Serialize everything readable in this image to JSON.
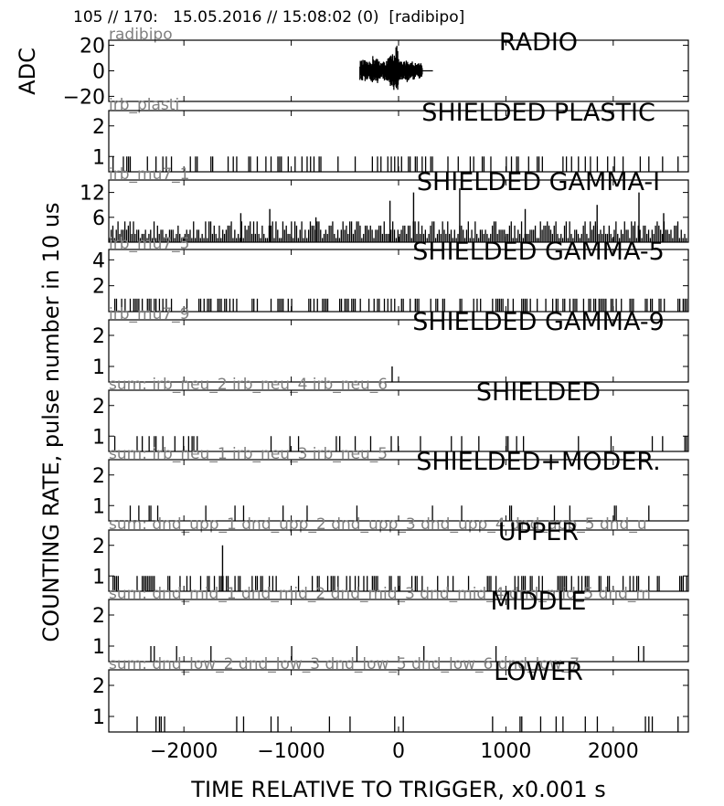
{
  "header": "105 // 170:   15.05.2016 // 15:08:02 (0)  [radibipo]",
  "chart_data": {
    "type": "line",
    "xlabel": "TIME RELATIVE TO TRIGGER,   x0.001 s",
    "xlim": [
      -2700,
      2700
    ],
    "xticks": [
      -2000,
      -1000,
      0,
      1000,
      2000
    ],
    "xtick_labels": [
      "−2000",
      "−1000",
      "0",
      "1000",
      "2000"
    ],
    "ylabel_adc": "ADC",
    "ylabel_rate": "COUNTING RATE,   pulse number in 10 us",
    "grid": false,
    "panels": [
      {
        "title": "RADIO",
        "source": "radibipo",
        "kind": "waveform",
        "ylim": [
          -24,
          24
        ],
        "yticks": [
          20,
          0,
          -20
        ],
        "ytick_labels": [
          "20",
          "0",
          "−20"
        ],
        "envelope": {
          "x": [
            -360,
            -320,
            -280,
            -240,
            -200,
            -160,
            -120,
            -90,
            -60,
            -40,
            -20,
            0,
            20,
            40,
            60,
            80,
            100,
            130,
            160,
            200,
            220
          ],
          "amp": [
            8,
            9,
            6,
            12,
            10,
            7,
            8,
            11,
            14,
            16,
            24,
            10,
            8,
            7,
            8,
            9,
            7,
            8,
            6,
            7,
            6
          ]
        },
        "baseline_x": [
          -360,
          320
        ]
      },
      {
        "title": "SHIELDED PLASTIC",
        "source": "irb_plasti",
        "kind": "pulses",
        "ylim": [
          0.5,
          2.5
        ],
        "yticks": [
          2,
          1
        ],
        "ytick_labels": [
          "2",
          "1"
        ],
        "density": 0.26,
        "spikes": []
      },
      {
        "title": "SHIELDED GAMMA-I",
        "source": "irb_mu7_1",
        "kind": "pulses",
        "ylim": [
          0,
          15
        ],
        "yticks": [
          12,
          6
        ],
        "ytick_labels": [
          "12",
          "6"
        ],
        "density": 1.0,
        "noise_max": 5,
        "spikes": [
          {
            "x": -1470,
            "y": 7
          },
          {
            "x": -1200,
            "y": 8
          },
          {
            "x": -770,
            "y": 6
          },
          {
            "x": -80,
            "y": 10
          },
          {
            "x": 140,
            "y": 12
          },
          {
            "x": 570,
            "y": 13
          },
          {
            "x": 1180,
            "y": 8
          },
          {
            "x": 1850,
            "y": 9
          },
          {
            "x": 2240,
            "y": 12
          },
          {
            "x": 2470,
            "y": 7
          }
        ]
      },
      {
        "title": "SHIELDED GAMMA-5",
        "source": "irb_mu7_5",
        "kind": "pulses",
        "ylim": [
          0,
          4.8
        ],
        "yticks": [
          4,
          2
        ],
        "ytick_labels": [
          "4",
          "2"
        ],
        "density": 0.45,
        "spikes": []
      },
      {
        "title": "SHIELDED GAMMA-9",
        "source": "irb_mu7_9",
        "kind": "pulses",
        "ylim": [
          0.5,
          2.5
        ],
        "yticks": [
          2,
          1
        ],
        "ytick_labels": [
          "2",
          "1"
        ],
        "density": 0,
        "spikes": [
          {
            "x": -60,
            "y": 1
          }
        ]
      },
      {
        "title": "SHIELDED",
        "source": "sum: irb_neu_2 irb_neu_4 irb_neu_6",
        "kind": "pulses",
        "ylim": [
          0.5,
          2.5
        ],
        "yticks": [
          2,
          1
        ],
        "ytick_labels": [
          "2",
          "1"
        ],
        "density": 0.1,
        "spikes": []
      },
      {
        "title": "SHIELDED+MODER.",
        "source": "sum: irb_neu_1 irb_neu_3 irb_neu_5",
        "kind": "pulses",
        "ylim": [
          0.5,
          2.5
        ],
        "yticks": [
          2,
          1
        ],
        "ytick_labels": [
          "2",
          "1"
        ],
        "density": 0.07,
        "spikes": []
      },
      {
        "title": "UPPER",
        "source": "sum: dnd_upp_1 dnd_upp_2 dnd_upp_3 dnd_upp_4 dnd_upp_5 dnd_u",
        "kind": "pulses",
        "ylim": [
          0.5,
          2.5
        ],
        "yticks": [
          2,
          1
        ],
        "ytick_labels": [
          "2",
          "1"
        ],
        "density": 0.32,
        "spikes": [
          {
            "x": -1640,
            "y": 2
          }
        ]
      },
      {
        "title": "MIDDLE",
        "source": "sum: dnd_mid_1 dnd_mid_2 dnd_mid_3 dnd_mid_4 dnd_mid_5 dnd_m",
        "kind": "pulses",
        "ylim": [
          0.5,
          2.5
        ],
        "yticks": [
          2,
          1
        ],
        "ytick_labels": [
          "2",
          "1"
        ],
        "density": 0.05,
        "spikes": []
      },
      {
        "title": "LOWER",
        "source": "sum: dnd_low_2 dnd_low_3 dnd_low_5 dnd_low_6 dnd_low_7",
        "kind": "pulses",
        "ylim": [
          0.5,
          2.5
        ],
        "yticks": [
          2,
          1
        ],
        "ytick_labels": [
          "2",
          "1"
        ],
        "density": 0.07,
        "spikes": []
      }
    ]
  }
}
